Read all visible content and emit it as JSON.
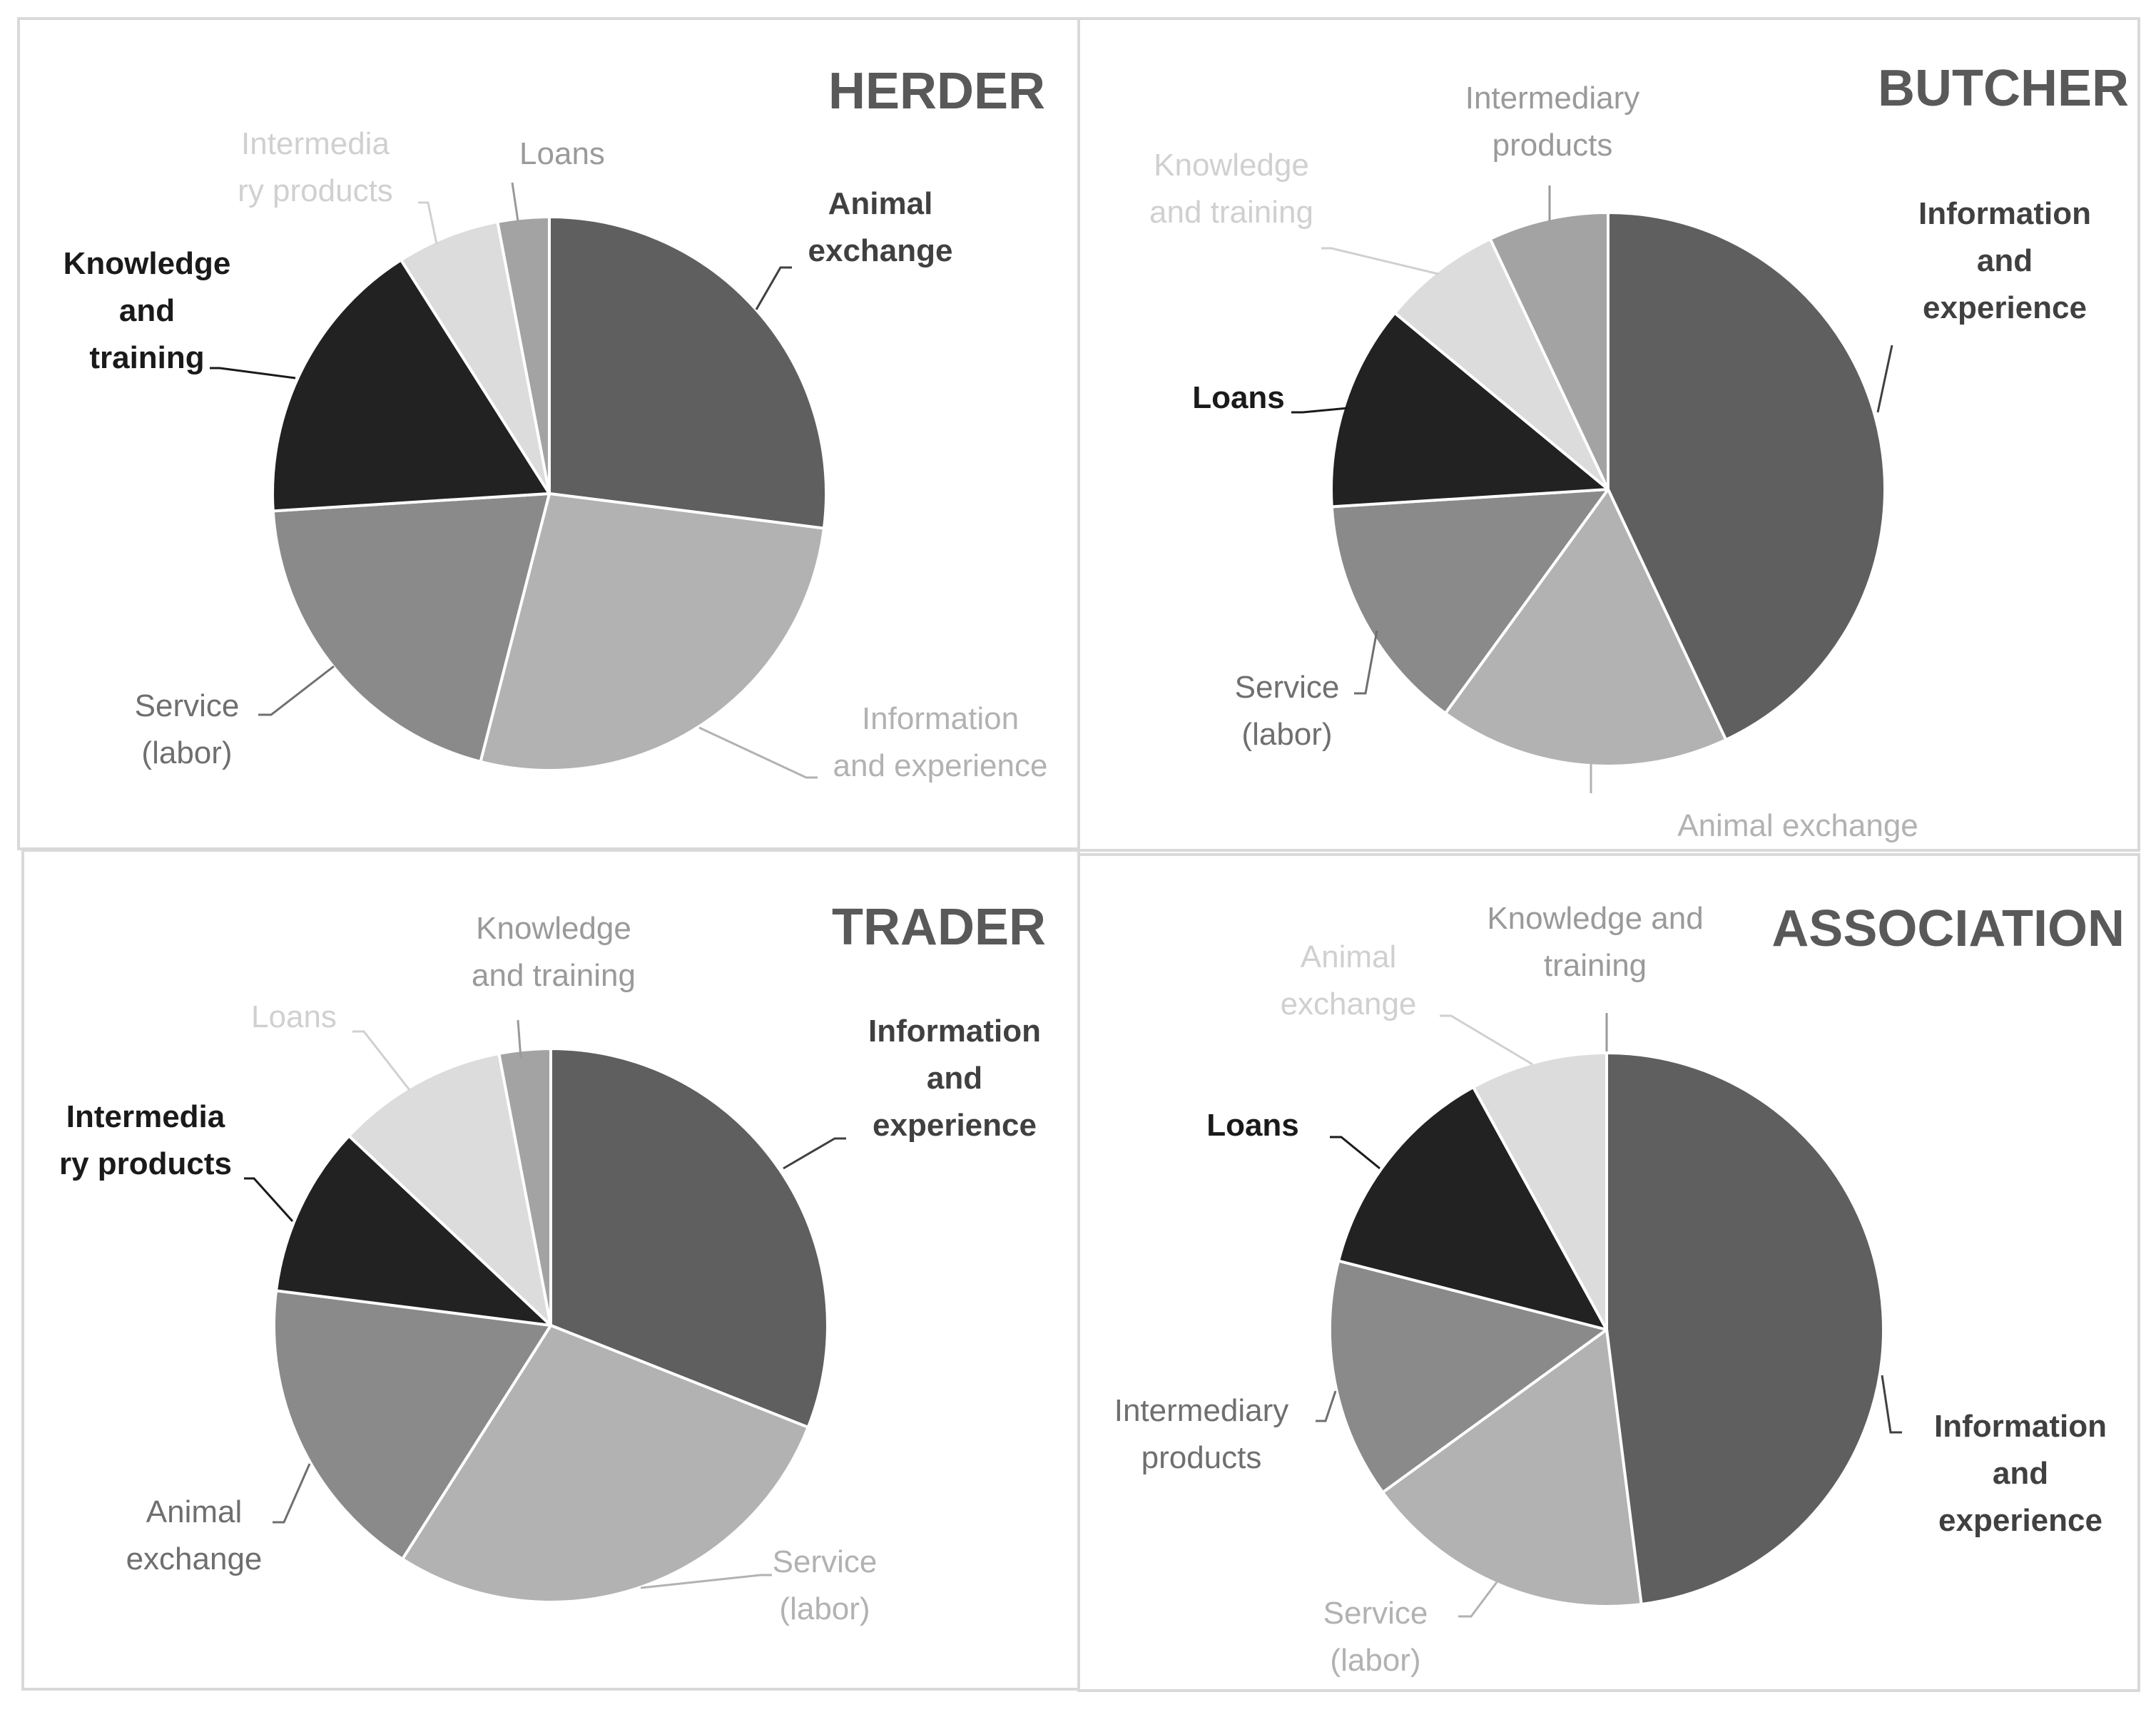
{
  "chart_data": [
    {
      "type": "pie",
      "title": "HERDER",
      "slices": [
        {
          "label": "Animal exchange",
          "value": 0.27,
          "color": "#5f5f5f",
          "label_color": "#404040"
        },
        {
          "label": "Information and experience",
          "value": 0.27,
          "color": "#b2b2b2",
          "label_color": "#b2b2b2"
        },
        {
          "label": "Service (labor)",
          "value": 0.2,
          "color": "#8a8a8a",
          "label_color": "#6f6f6f"
        },
        {
          "label": "Knowledge and training",
          "value": 0.17,
          "color": "#222222",
          "label_color": "#1a1a1a"
        },
        {
          "label": "Intermediary products",
          "value": 0.06,
          "color": "#dcdcdc",
          "label_color": "#d0d0d0"
        },
        {
          "label": "Loans",
          "value": 0.03,
          "color": "#a3a3a3",
          "label_color": "#9a9a9a"
        }
      ]
    },
    {
      "type": "pie",
      "title": "BUTCHER",
      "slices": [
        {
          "label": "Information and experience",
          "value": 0.43,
          "color": "#5f5f5f",
          "label_color": "#404040"
        },
        {
          "label": "Animal exchange",
          "value": 0.17,
          "color": "#b2b2b2",
          "label_color": "#b2b2b2"
        },
        {
          "label": "Service (labor)",
          "value": 0.14,
          "color": "#8a8a8a",
          "label_color": "#6f6f6f"
        },
        {
          "label": "Loans",
          "value": 0.12,
          "color": "#222222",
          "label_color": "#1a1a1a"
        },
        {
          "label": "Knowledge and training",
          "value": 0.07,
          "color": "#dcdcdc",
          "label_color": "#d0d0d0"
        },
        {
          "label": "Intermediary products",
          "value": 0.07,
          "color": "#a3a3a3",
          "label_color": "#9a9a9a"
        }
      ]
    },
    {
      "type": "pie",
      "title": "TRADER",
      "slices": [
        {
          "label": "Information and experience",
          "value": 0.31,
          "color": "#5f5f5f",
          "label_color": "#404040"
        },
        {
          "label": "Service (labor)",
          "value": 0.28,
          "color": "#b2b2b2",
          "label_color": "#b2b2b2"
        },
        {
          "label": "Animal exchange",
          "value": 0.18,
          "color": "#8a8a8a",
          "label_color": "#6f6f6f"
        },
        {
          "label": "Intermediary products",
          "value": 0.1,
          "color": "#222222",
          "label_color": "#1a1a1a"
        },
        {
          "label": "Loans",
          "value": 0.1,
          "color": "#dcdcdc",
          "label_color": "#d0d0d0"
        },
        {
          "label": "Knowledge and training",
          "value": 0.03,
          "color": "#a3a3a3",
          "label_color": "#9a9a9a"
        }
      ]
    },
    {
      "type": "pie",
      "title": "ASSOCIATION",
      "slices": [
        {
          "label": "Information and experience",
          "value": 0.48,
          "color": "#5f5f5f",
          "label_color": "#404040"
        },
        {
          "label": "Service (labor)",
          "value": 0.17,
          "color": "#b2b2b2",
          "label_color": "#b2b2b2"
        },
        {
          "label": "Intermediary products",
          "value": 0.14,
          "color": "#8a8a8a",
          "label_color": "#6f6f6f"
        },
        {
          "label": "Loans",
          "value": 0.13,
          "color": "#222222",
          "label_color": "#1a1a1a"
        },
        {
          "label": "Animal exchange",
          "value": 0.08,
          "color": "#dcdcdc",
          "label_color": "#d0d0d0"
        },
        {
          "label": "Knowledge and training",
          "value": 0.0,
          "color": "#a3a3a3",
          "label_color": "#9a9a9a"
        }
      ]
    }
  ],
  "labels": {
    "herder": {
      "title": "HERDER",
      "animal_exchange": [
        "Animal",
        "exchange"
      ],
      "information": [
        "Information",
        "and experience"
      ],
      "service": [
        "Service",
        "(labor)"
      ],
      "knowledge": [
        "Knowledge",
        "and",
        "training"
      ],
      "intermediary": [
        "Intermedia",
        "ry products"
      ],
      "loans": [
        "Loans"
      ]
    },
    "butcher": {
      "title": "BUTCHER",
      "intermediary": [
        "Intermediary",
        "products"
      ],
      "knowledge": [
        "Knowledge",
        "and training"
      ],
      "information": [
        "Information",
        "and",
        "experience"
      ],
      "loans": [
        "Loans"
      ],
      "service": [
        "Service",
        "(labor)"
      ],
      "animal_exchange": [
        "Animal exchange"
      ]
    },
    "trader": {
      "title": "TRADER",
      "knowledge": [
        "Knowledge",
        "and training"
      ],
      "loans": [
        "Loans"
      ],
      "information": [
        "Information",
        "and",
        "experience"
      ],
      "intermediary": [
        "Intermedia",
        "ry products"
      ],
      "animal_exchange": [
        "Animal",
        "exchange"
      ],
      "service": [
        "Service",
        "(labor)"
      ]
    },
    "association": {
      "title": "ASSOCIATION",
      "knowledge": [
        "Knowledge and",
        "training"
      ],
      "animal_exchange": [
        "Animal",
        "exchange"
      ],
      "loans": [
        "Loans"
      ],
      "intermediary": [
        "Intermediary",
        "products"
      ],
      "information": [
        "Information",
        "and",
        "experience"
      ],
      "service": [
        "Service",
        "(labor)"
      ]
    }
  }
}
